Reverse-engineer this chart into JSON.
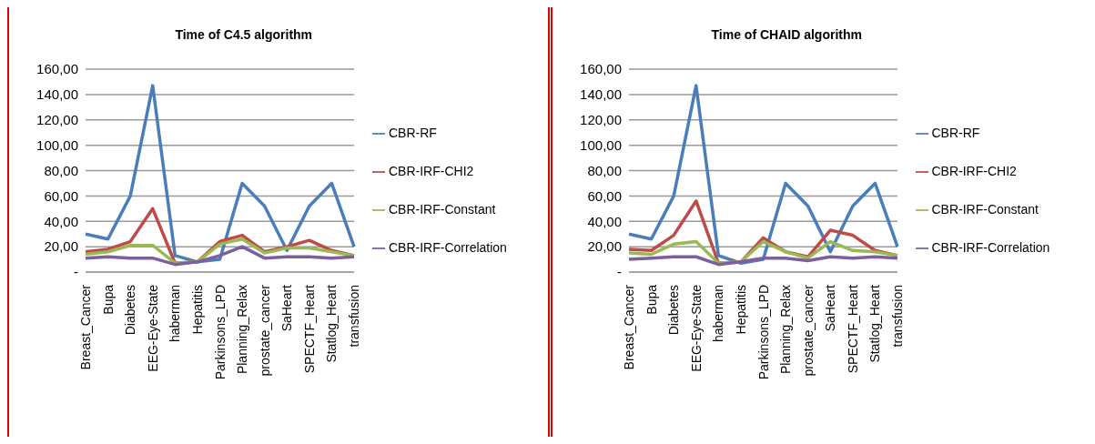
{
  "chart_data": [
    {
      "type": "line",
      "title": "Time of C4.5 algorithm",
      "categories": [
        "Breast_Cancer",
        "Bupa",
        "Diabetes",
        "EEG-Eye-State",
        "haberman",
        "Hepatitis",
        "Parkinsons_LPD",
        "Planning_Relax",
        "prostate_cancer",
        "SaHeart",
        "SPECTF_Heart",
        "Statlog_Heart",
        "transfusion"
      ],
      "series": [
        {
          "name": "CBR-RF",
          "color": "#4a7ebb",
          "values": [
            30,
            26,
            60,
            147,
            13,
            8,
            10,
            70,
            52,
            17,
            52,
            70,
            20
          ]
        },
        {
          "name": "CBR-IRF-CHI2",
          "color": "#be4b48",
          "values": [
            16,
            18,
            24,
            50,
            7,
            8,
            24,
            29,
            16,
            20,
            25,
            17,
            13
          ]
        },
        {
          "name": "CBR-IRF-Constant",
          "color": "#98b954",
          "values": [
            14,
            16,
            21,
            21,
            7,
            8,
            22,
            26,
            15,
            19,
            19,
            16,
            13
          ]
        },
        {
          "name": "CBR-IRF-Correlation",
          "color": "#7d5fa0",
          "values": [
            11,
            12,
            11,
            11,
            6,
            8,
            13,
            20,
            11,
            12,
            12,
            11,
            12
          ]
        }
      ],
      "ylim": [
        0,
        160
      ],
      "yticks": [
        {
          "value": 0,
          "label": "-"
        },
        {
          "value": 20,
          "label": "20,00"
        },
        {
          "value": 40,
          "label": "40,00"
        },
        {
          "value": 60,
          "label": "60,00"
        },
        {
          "value": 80,
          "label": "80,00"
        },
        {
          "value": 100,
          "label": "100,00"
        },
        {
          "value": 120,
          "label": "120,00"
        },
        {
          "value": 140,
          "label": "140,00"
        },
        {
          "value": 160,
          "label": "160,00"
        }
      ],
      "grid": "y",
      "legend": "right",
      "marker": "none",
      "line_style": "solid"
    },
    {
      "type": "line",
      "title": "Time of CHAID algorithm",
      "categories": [
        "Breast_Cancer",
        "Bupa",
        "Diabetes",
        "EEG-Eye-State",
        "haberman",
        "Hepatitis",
        "Parkinsons_LPD",
        "Planning_Relax",
        "prostate_cancer",
        "SaHeart",
        "SPECTF_Heart",
        "Statlog_Heart",
        "transfusion"
      ],
      "series": [
        {
          "name": "CBR-RF",
          "color": "#4a7ebb",
          "values": [
            30,
            26,
            60,
            147,
            13,
            7,
            10,
            70,
            52,
            16,
            52,
            70,
            20
          ]
        },
        {
          "name": "CBR-IRF-CHI2",
          "color": "#be4b48",
          "values": [
            18,
            17,
            29,
            56,
            7,
            8,
            27,
            16,
            12,
            33,
            29,
            17,
            13
          ]
        },
        {
          "name": "CBR-IRF-Constant",
          "color": "#98b954",
          "values": [
            15,
            14,
            22,
            24,
            7,
            8,
            24,
            16,
            11,
            24,
            17,
            16,
            13
          ]
        },
        {
          "name": "CBR-IRF-Correlation",
          "color": "#7d5fa0",
          "values": [
            10,
            11,
            12,
            12,
            6,
            8,
            11,
            11,
            9,
            12,
            11,
            12,
            11
          ]
        }
      ],
      "ylim": [
        0,
        160
      ],
      "yticks": [
        {
          "value": 0,
          "label": "-"
        },
        {
          "value": 20,
          "label": "20,00"
        },
        {
          "value": 40,
          "label": "40,00"
        },
        {
          "value": 60,
          "label": "60,00"
        },
        {
          "value": 80,
          "label": "80,00"
        },
        {
          "value": 100,
          "label": "100,00"
        },
        {
          "value": 120,
          "label": "120,00"
        },
        {
          "value": 140,
          "label": "140,00"
        },
        {
          "value": 160,
          "label": "160,00"
        }
      ],
      "grid": "y",
      "legend": "right",
      "marker": "none",
      "line_style": "solid"
    }
  ]
}
